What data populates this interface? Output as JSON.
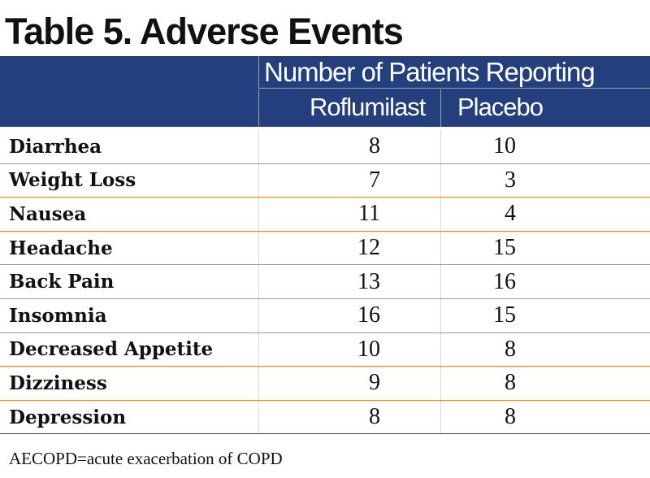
{
  "title": "Table 5. Adverse Events",
  "header": {
    "group_label": "Number of Patients Reporting",
    "columns": [
      "Roflumilast",
      "Placebo"
    ]
  },
  "rows": [
    {
      "event": "Diarrhea",
      "roflumilast": "8",
      "placebo": "10"
    },
    {
      "event": "Weight Loss",
      "roflumilast": "7",
      "placebo": "3"
    },
    {
      "event": "Nausea",
      "roflumilast": "11",
      "placebo": "4"
    },
    {
      "event": "Headache",
      "roflumilast": "12",
      "placebo": "15"
    },
    {
      "event": "Back Pain",
      "roflumilast": "13",
      "placebo": "16"
    },
    {
      "event": "Insomnia",
      "roflumilast": "16",
      "placebo": "15"
    },
    {
      "event": "Decreased Appetite",
      "roflumilast": "10",
      "placebo": "8"
    },
    {
      "event": "Dizziness",
      "roflumilast": "9",
      "placebo": "8"
    },
    {
      "event": "Depression",
      "roflumilast": "8",
      "placebo": "8"
    }
  ],
  "footnote": "AECOPD=acute exacerbation of COPD",
  "colors": {
    "header_background": "#243f7d",
    "row_divider": "#e8833a"
  }
}
